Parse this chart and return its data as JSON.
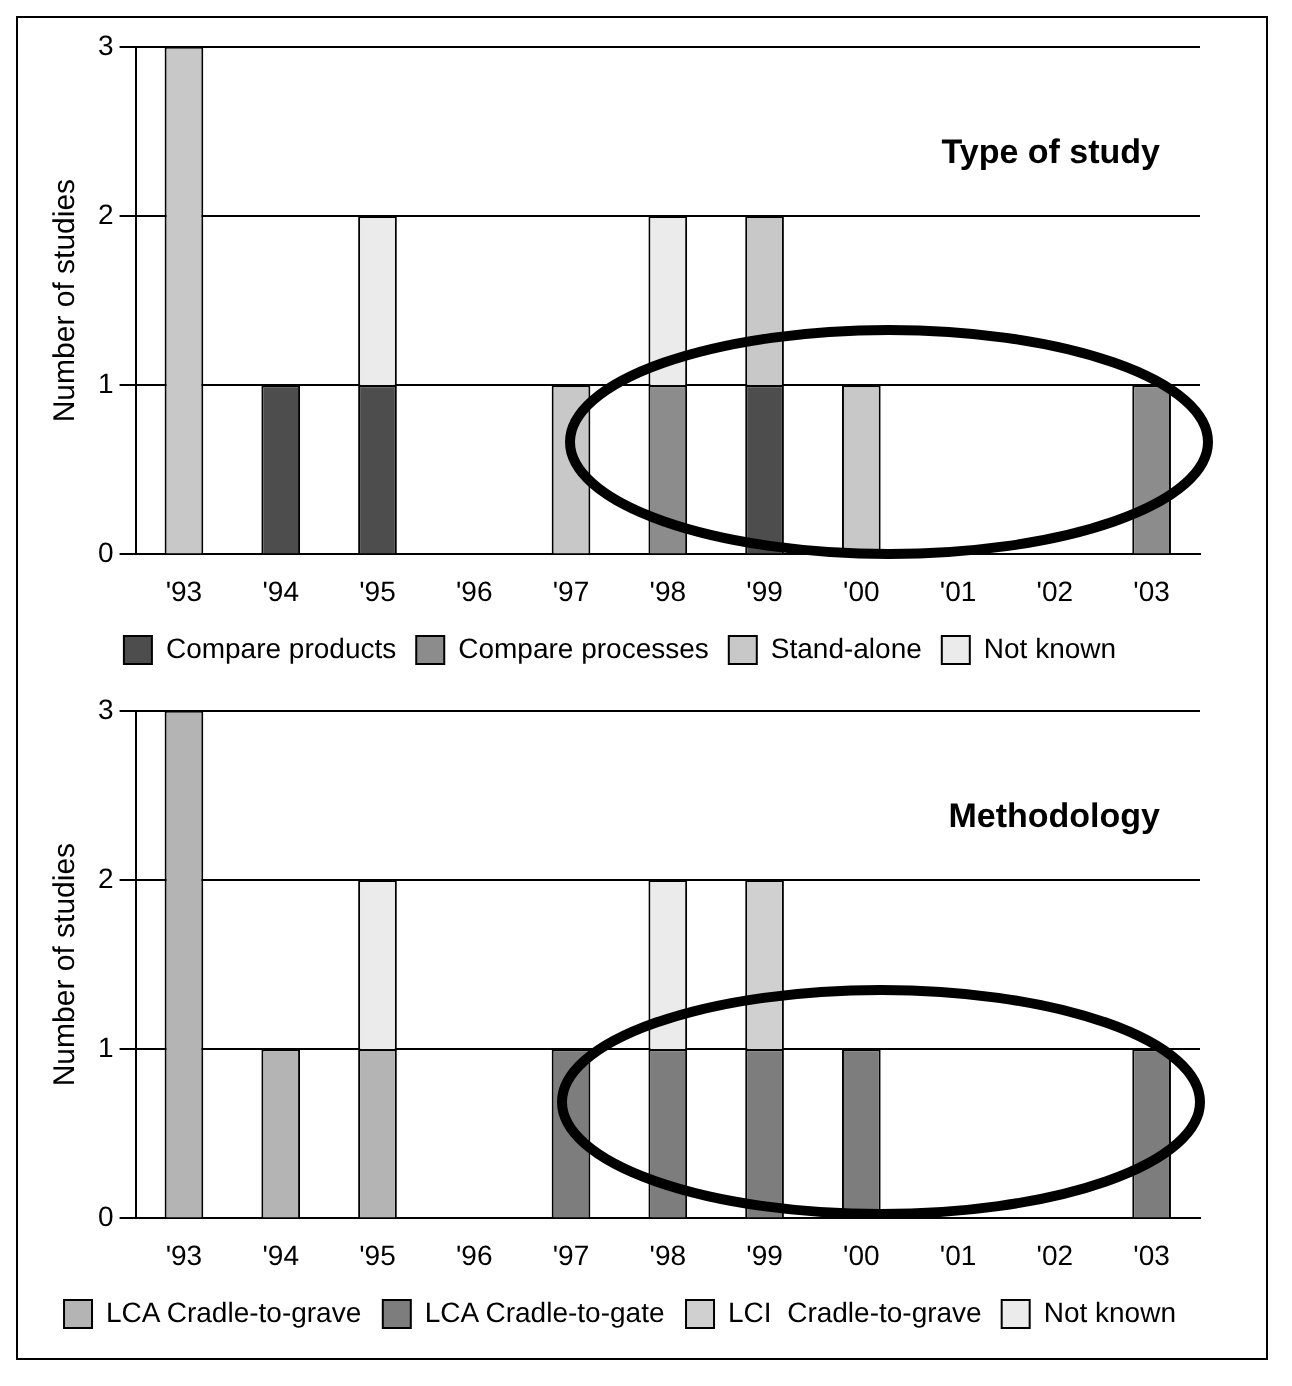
{
  "chart_data": [
    {
      "type": "bar",
      "title": "Type of study",
      "ylabel": "Number of studies",
      "categories": [
        "'93",
        "'94",
        "'95",
        "'96",
        "'97",
        "'98",
        "'99",
        "'00",
        "'01",
        "'02",
        "'03"
      ],
      "stacked": true,
      "series": [
        {
          "name": "Compare products",
          "color": "#4d4d4d",
          "values": [
            null,
            1,
            1,
            null,
            null,
            null,
            1,
            null,
            null,
            null,
            null
          ]
        },
        {
          "name": "Compare processes",
          "color": "#8c8c8c",
          "values": [
            null,
            null,
            null,
            null,
            null,
            1,
            null,
            null,
            null,
            null,
            1
          ]
        },
        {
          "name": "Stand-alone",
          "color": "#c8c8c8",
          "values": [
            3,
            null,
            null,
            null,
            1,
            null,
            1,
            1,
            null,
            null,
            null
          ]
        },
        {
          "name": "Not known",
          "color": "#ebebeb",
          "values": [
            null,
            null,
            1,
            null,
            null,
            1,
            null,
            null,
            null,
            null,
            null
          ]
        }
      ],
      "ylim": [
        0,
        3
      ],
      "yticks": [
        0,
        1,
        2,
        3
      ],
      "grid": "y",
      "legend": "bottom"
    },
    {
      "type": "bar",
      "title": "Methodology",
      "ylabel": "Number of studies",
      "categories": [
        "'93",
        "'94",
        "'95",
        "'96",
        "'97",
        "'98",
        "'99",
        "'00",
        "'01",
        "'02",
        "'03"
      ],
      "stacked": true,
      "series": [
        {
          "name": "LCA Cradle-to-grave",
          "color": "#b4b4b4",
          "values": [
            3,
            1,
            1,
            null,
            null,
            null,
            null,
            null,
            null,
            null,
            null
          ]
        },
        {
          "name": "LCA Cradle-to-gate",
          "color": "#7d7d7d",
          "values": [
            null,
            null,
            null,
            null,
            1,
            1,
            1,
            1,
            null,
            null,
            1
          ]
        },
        {
          "name": "LCI  Cradle-to-grave",
          "color": "#d0d0d0",
          "values": [
            null,
            null,
            null,
            null,
            null,
            null,
            1,
            null,
            null,
            null,
            null
          ]
        },
        {
          "name": "Not known",
          "color": "#ebebeb",
          "values": [
            null,
            null,
            1,
            null,
            null,
            1,
            null,
            null,
            null,
            null,
            null
          ]
        }
      ],
      "ylim": [
        0,
        3
      ],
      "yticks": [
        0,
        1,
        2,
        3
      ],
      "grid": "y",
      "legend": "bottom"
    }
  ]
}
